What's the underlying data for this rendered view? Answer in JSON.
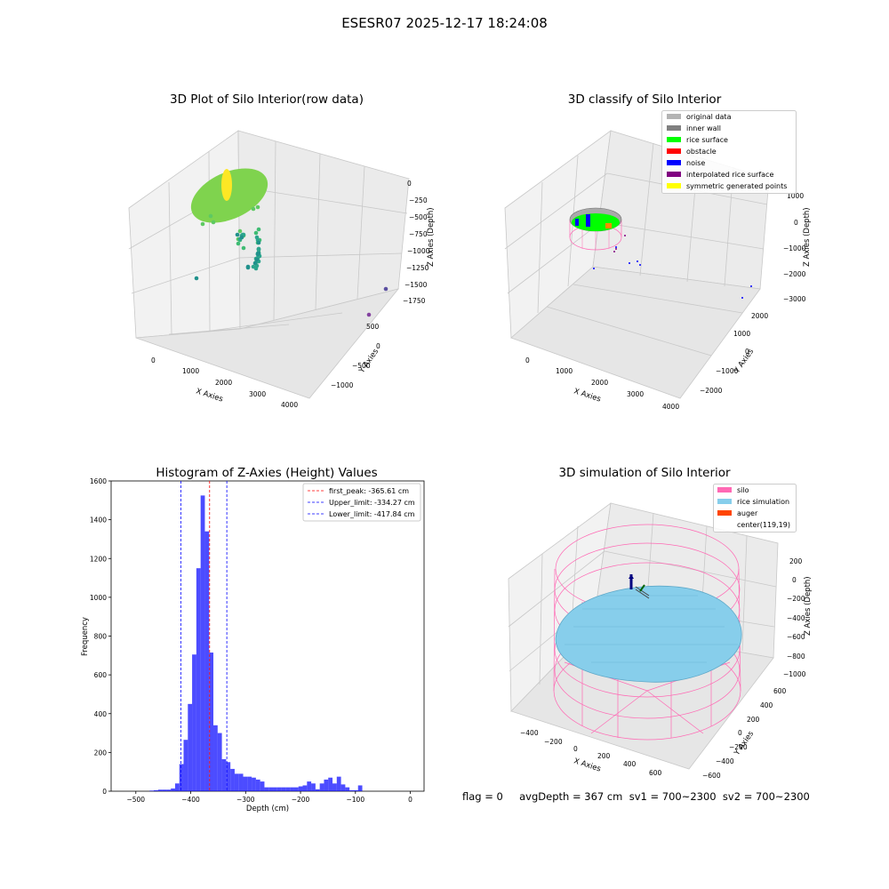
{
  "page": {
    "suptitle": "ESESR07 2025-12-17 18:24:08",
    "footer": "flag = 0     avgDepth = 367 cm  sv1 = 700~2300  sv2 = 700~2300"
  },
  "panels": {
    "raw": {
      "title": "3D Plot of Silo Interior(row data)",
      "xlabel": "X Axies",
      "ylabel": "Y Axies",
      "zlabel": "Z Axies (Depth)",
      "xticks": [
        "0",
        "1000",
        "2000",
        "3000",
        "4000"
      ],
      "yticks": [
        "500",
        "0",
        "−500",
        "−1000"
      ],
      "zticks": [
        "0",
        "−250",
        "−500",
        "−750",
        "−1000",
        "−1250",
        "−1500",
        "−1750"
      ]
    },
    "classify": {
      "title": "3D classify of Silo Interior",
      "xlabel": "X Axies",
      "ylabel": "Y Axies",
      "zlabel": "Z Axies (Depth)",
      "xticks": [
        "0",
        "1000",
        "2000",
        "3000",
        "4000"
      ],
      "yticks": [
        "2000",
        "1000",
        "0",
        "−1000",
        "−2000"
      ],
      "zticks": [
        "1000",
        "0",
        "−1000",
        "−2000",
        "−3000"
      ],
      "legend": [
        {
          "label": "original data",
          "color": "#b3b3b3"
        },
        {
          "label": "inner wall",
          "color": "#808080"
        },
        {
          "label": "rice surface",
          "color": "#00ff00"
        },
        {
          "label": "obstacle",
          "color": "#ff0000"
        },
        {
          "label": "noise",
          "color": "#0000ff"
        },
        {
          "label": "interpolated rice surface",
          "color": "#800080"
        },
        {
          "label": "symmetric generated points",
          "color": "#ffff00"
        }
      ]
    },
    "simulation": {
      "title": "3D simulation of Silo Interior",
      "xlabel": "X Axies",
      "ylabel": "Y Axies",
      "zlabel": "Z Axies (Depth)",
      "xticks": [
        "−400",
        "−200",
        "0",
        "200",
        "400",
        "600"
      ],
      "yticks": [
        "600",
        "400",
        "200",
        "0",
        "−200",
        "−400",
        "−600"
      ],
      "zticks": [
        "200",
        "0",
        "−200",
        "−400",
        "−600",
        "−800",
        "−1000"
      ],
      "legend": [
        {
          "label": "silo",
          "color": "#ff69b4"
        },
        {
          "label": "rice simulation",
          "color": "#87ceeb"
        },
        {
          "label": "auger",
          "color": "#ff4500"
        },
        {
          "label": "center(119,19)",
          "color": ""
        }
      ]
    }
  },
  "chart_data": {
    "type": "bar",
    "title": "Histogram of Z-Axies (Height) Values",
    "xlabel": "Depth (cm)",
    "ylabel": "Frequency",
    "xlim": [
      -545,
      25
    ],
    "ylim": [
      0,
      1600
    ],
    "xticks": [
      -500,
      -400,
      -300,
      -200,
      -100,
      0
    ],
    "yticks": [
      0,
      200,
      400,
      600,
      800,
      1000,
      1200,
      1400,
      1600
    ],
    "bin_width": 7.75,
    "bin_start": -475,
    "values": [
      3,
      5,
      8,
      8,
      8,
      14,
      40,
      140,
      265,
      450,
      705,
      1150,
      1525,
      1340,
      715,
      340,
      300,
      165,
      150,
      115,
      90,
      90,
      75,
      75,
      70,
      60,
      50,
      20,
      20,
      20,
      20,
      20,
      20,
      20,
      20,
      25,
      30,
      50,
      40,
      10,
      40,
      60,
      70,
      40,
      75,
      35,
      20,
      5,
      5,
      30
    ],
    "bar_color": "#0000ff",
    "bar_alpha": 0.7,
    "reference_lines": [
      {
        "label": "first_peak: -365.61 cm",
        "x": -365.61,
        "color": "#ff0000"
      },
      {
        "label": "Upper_limit: -334.27 cm",
        "x": -334.27,
        "color": "#0000ff"
      },
      {
        "label": "Lower_limit: -417.84 cm",
        "x": -417.84,
        "color": "#0000ff"
      }
    ],
    "legend_position": "top-right",
    "grid": false
  }
}
